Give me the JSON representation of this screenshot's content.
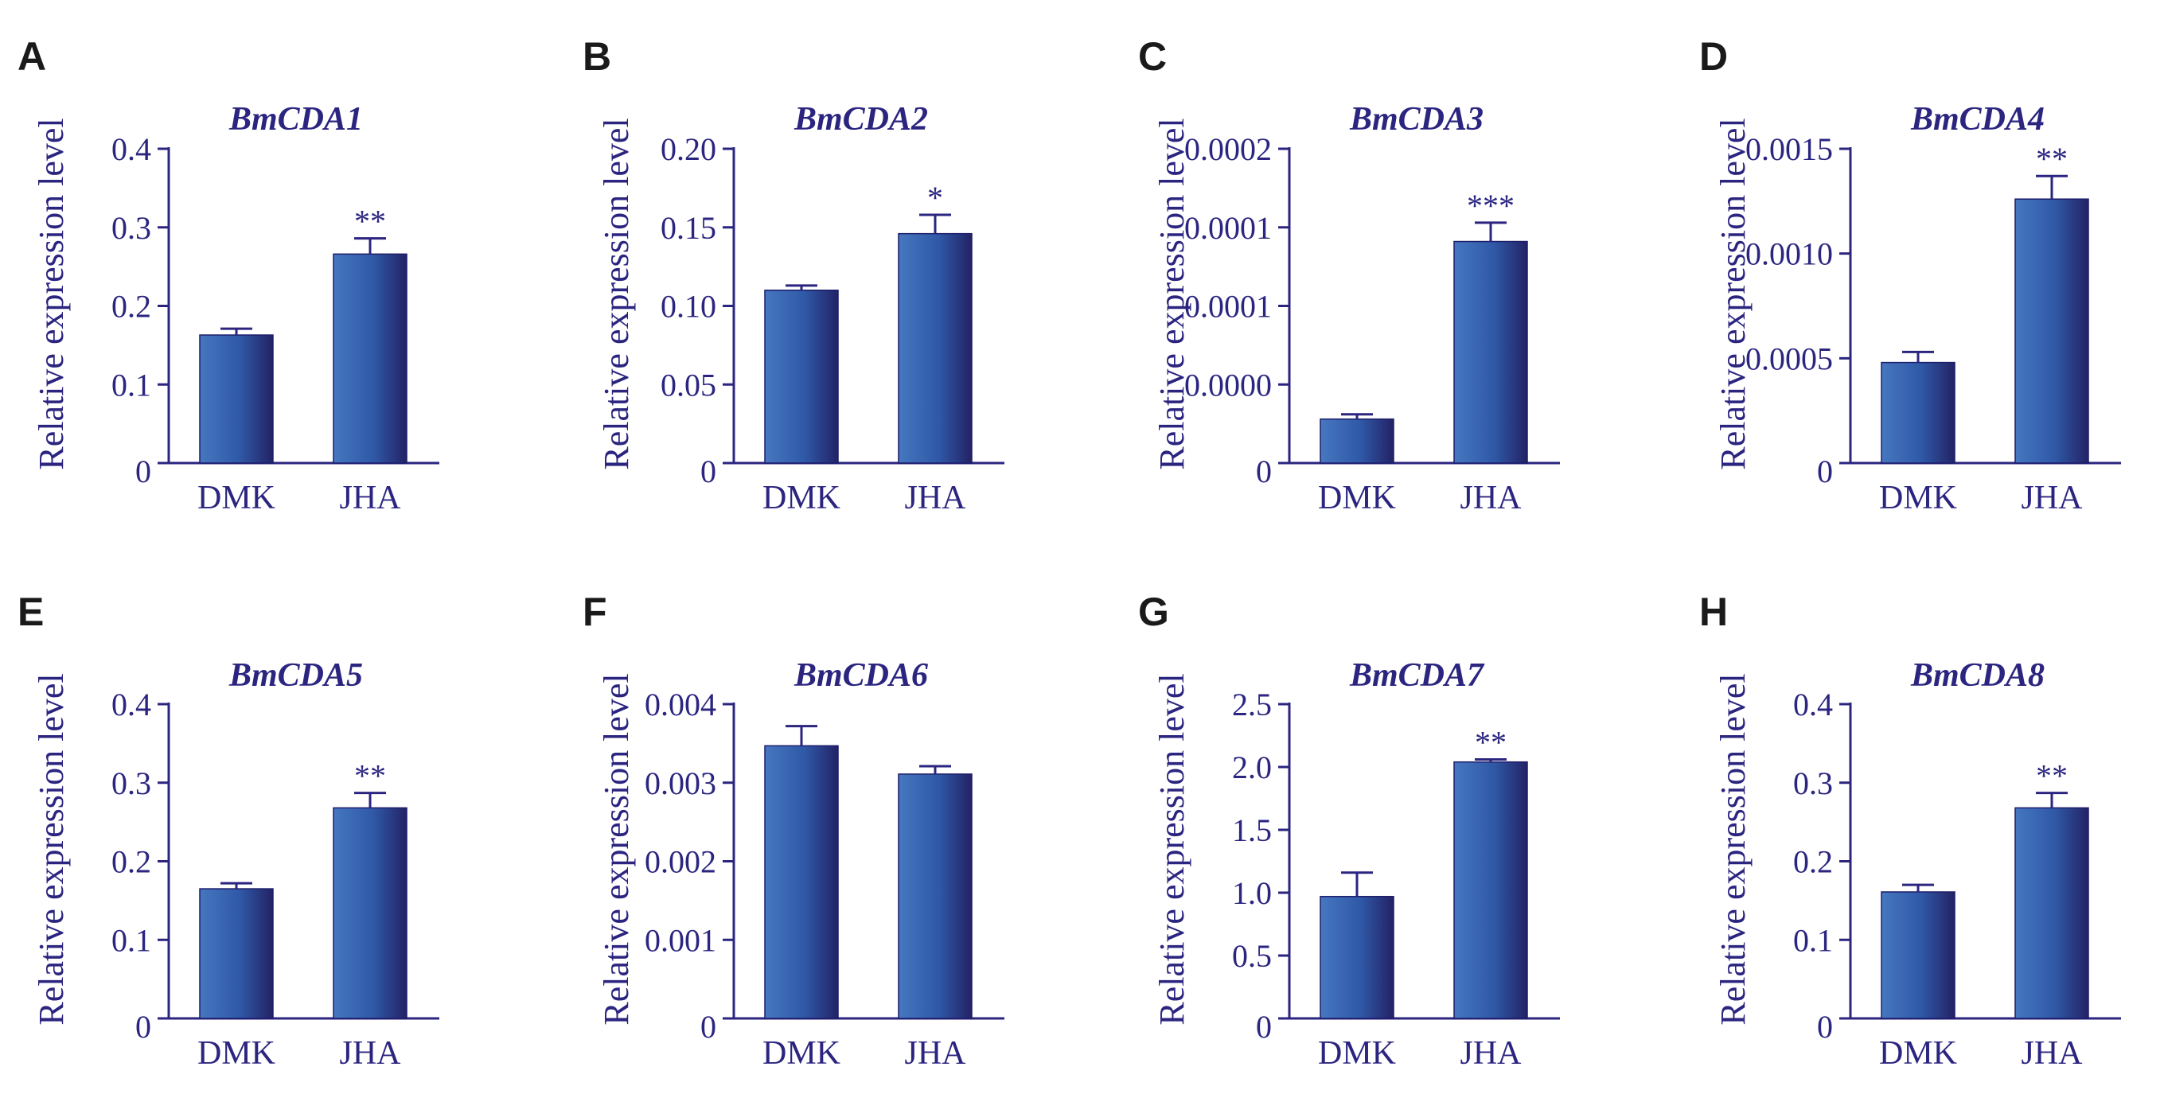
{
  "chart_data": [
    {
      "panel": "A",
      "type": "bar",
      "title": "BmCDA1",
      "ylabel": "Relative expression level",
      "xlabel": "",
      "categories": [
        "DMK",
        "JHA"
      ],
      "values": [
        0.163,
        0.266
      ],
      "errors": [
        0.008,
        0.02
      ],
      "significance": [
        "",
        "**"
      ],
      "ylim": [
        0,
        0.4
      ],
      "yticks": [
        0,
        0.1,
        0.2,
        0.3,
        0.4
      ],
      "ytick_labels": [
        "0",
        "0.1",
        "0.2",
        "0.3",
        "0.4"
      ]
    },
    {
      "panel": "B",
      "type": "bar",
      "title": "BmCDA2",
      "ylabel": "Relative expression level",
      "xlabel": "",
      "categories": [
        "DMK",
        "JHA"
      ],
      "values": [
        0.11,
        0.146
      ],
      "errors": [
        0.003,
        0.012
      ],
      "significance": [
        "",
        "*"
      ],
      "ylim": [
        0,
        0.2
      ],
      "yticks": [
        0,
        0.05,
        0.1,
        0.15,
        0.2
      ],
      "ytick_labels": [
        "0",
        "0.05",
        "0.10",
        "0.15",
        "0.20"
      ]
    },
    {
      "panel": "C",
      "type": "bar",
      "title": "BmCDA3",
      "ylabel": "Relative expression level",
      "xlabel": "",
      "categories": [
        "DMK",
        "JHA"
      ],
      "values": [
        2.8e-05,
        0.000141
      ],
      "errors": [
        3e-06,
        1.2e-05
      ],
      "significance": [
        "",
        "***"
      ],
      "ylim": [
        0,
        0.0002
      ],
      "yticks": [
        0,
        5e-05,
        0.0001,
        0.00015,
        0.0002
      ],
      "ytick_labels": [
        "0",
        "0.0000",
        "0.0001",
        "0.0001",
        "0.0002"
      ]
    },
    {
      "panel": "D",
      "type": "bar",
      "title": "BmCDA4",
      "ylabel": "Relative expression level",
      "xlabel": "",
      "categories": [
        "DMK",
        "JHA"
      ],
      "values": [
        0.00048,
        0.00126
      ],
      "errors": [
        5e-05,
        0.00011
      ],
      "significance": [
        "",
        "**"
      ],
      "ylim": [
        0,
        0.0015
      ],
      "yticks": [
        0,
        0.0005,
        0.001,
        0.0015
      ],
      "ytick_labels": [
        "0",
        "0.0005",
        "0.0010",
        "0.0015"
      ]
    },
    {
      "panel": "E",
      "type": "bar",
      "title": "BmCDA5",
      "ylabel": "Relative expression level",
      "xlabel": "",
      "categories": [
        "DMK",
        "JHA"
      ],
      "values": [
        0.165,
        0.268
      ],
      "errors": [
        0.007,
        0.019
      ],
      "significance": [
        "",
        "**"
      ],
      "ylim": [
        0,
        0.4
      ],
      "yticks": [
        0,
        0.1,
        0.2,
        0.3,
        0.4
      ],
      "ytick_labels": [
        "0",
        "0.1",
        "0.2",
        "0.3",
        "0.4"
      ]
    },
    {
      "panel": "F",
      "type": "bar",
      "title": "BmCDA6",
      "ylabel": "Relative expression level",
      "xlabel": "",
      "categories": [
        "DMK",
        "JHA"
      ],
      "values": [
        0.00347,
        0.00311
      ],
      "errors": [
        0.00025,
        0.0001
      ],
      "significance": [
        "",
        ""
      ],
      "ylim": [
        0,
        0.004
      ],
      "yticks": [
        0,
        0.001,
        0.002,
        0.003,
        0.004
      ],
      "ytick_labels": [
        "0",
        "0.001",
        "0.002",
        "0.003",
        "0.004"
      ]
    },
    {
      "panel": "G",
      "type": "bar",
      "title": "BmCDA7",
      "ylabel": "Relative expression level",
      "xlabel": "",
      "categories": [
        "DMK",
        "JHA"
      ],
      "values": [
        0.97,
        2.04
      ],
      "errors": [
        0.19,
        0.02
      ],
      "significance": [
        "",
        "**"
      ],
      "ylim": [
        0,
        2.5
      ],
      "yticks": [
        0,
        0.5,
        1.0,
        1.5,
        2.0,
        2.5
      ],
      "ytick_labels": [
        "0",
        "0.5",
        "1.0",
        "1.5",
        "2.0",
        "2.5"
      ]
    },
    {
      "panel": "H",
      "type": "bar",
      "title": "BmCDA8",
      "ylabel": "Relative expression level",
      "xlabel": "",
      "categories": [
        "DMK",
        "JHA"
      ],
      "values": [
        0.161,
        0.268
      ],
      "errors": [
        0.009,
        0.019
      ],
      "significance": [
        "",
        "**"
      ],
      "ylim": [
        0,
        0.4
      ],
      "yticks": [
        0,
        0.1,
        0.2,
        0.3,
        0.4
      ],
      "ytick_labels": [
        "0",
        "0.1",
        "0.2",
        "0.3",
        "0.4"
      ]
    }
  ],
  "colors": {
    "axis": "#2b2580",
    "bar_light": "#3f6fb8",
    "bar_dark": "#262470",
    "panel_letter": "#1a1a1a"
  }
}
